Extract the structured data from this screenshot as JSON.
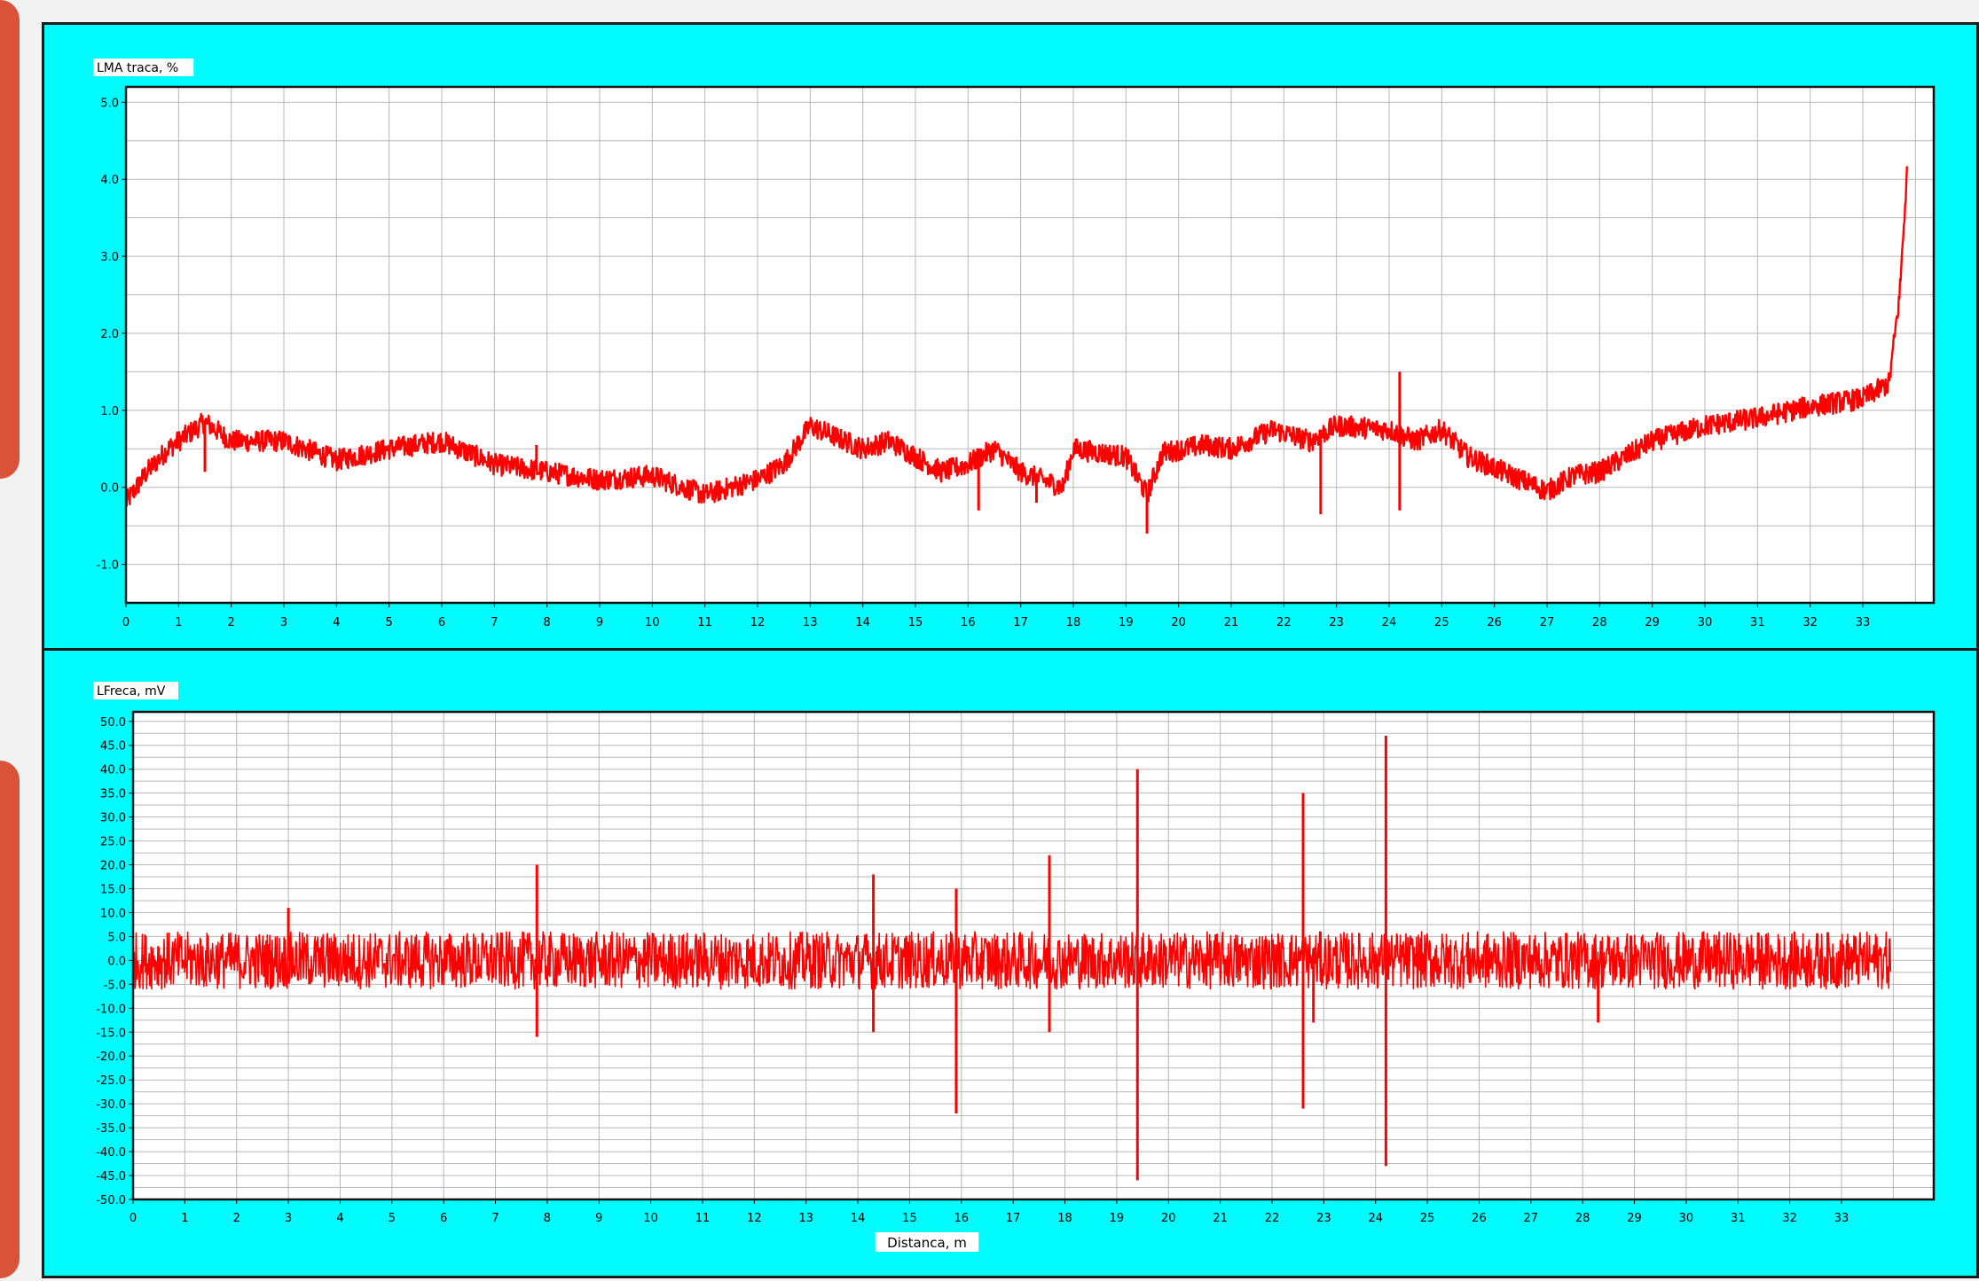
{
  "colors": {
    "background": "#00fcfc",
    "plot_area": "#ffffff",
    "grid": "#b8b8b8",
    "series": "#ff0000",
    "accent": "#d9533b"
  },
  "chart_data": [
    {
      "type": "line",
      "title": "LMA traca, %",
      "xlabel": "",
      "ylabel": "",
      "xlim": [
        0,
        34
      ],
      "ylim": [
        -1.5,
        5.2
      ],
      "x_ticks": [
        0,
        1,
        2,
        3,
        4,
        5,
        6,
        7,
        8,
        9,
        10,
        11,
        12,
        13,
        14,
        15,
        16,
        17,
        18,
        19,
        20,
        21,
        22,
        23,
        24,
        25,
        26,
        27,
        28,
        29,
        30,
        31,
        32,
        33
      ],
      "x_tick_labels": [
        "0",
        "1",
        "2",
        "3",
        "4",
        "5",
        "6",
        "7",
        "8",
        "9",
        "10",
        "11",
        "12",
        "13",
        "14",
        "15",
        "16",
        "17",
        "18",
        "19",
        "20",
        "21",
        "22",
        "23",
        "24",
        "25",
        "26",
        "27",
        "28",
        "29",
        "30",
        "31",
        "32",
        "33"
      ],
      "y_ticks": [
        5.0,
        4.0,
        3.0,
        2.0,
        1.0,
        0.0,
        -1.0
      ],
      "y_tick_labels": [
        "5.0",
        "4.0",
        "3.0",
        "2.0",
        "1.0",
        "0.0",
        "-1.0"
      ],
      "grid": true,
      "series": [
        {
          "baseline": [
            [
              0,
              -0.2
            ],
            [
              0.4,
              0.2
            ],
            [
              0.8,
              0.5
            ],
            [
              1.5,
              0.85
            ],
            [
              2,
              0.6
            ],
            [
              3,
              0.6
            ],
            [
              4,
              0.35
            ],
            [
              5,
              0.5
            ],
            [
              6,
              0.6
            ],
            [
              7,
              0.3
            ],
            [
              8,
              0.2
            ],
            [
              9,
              0.1
            ],
            [
              10,
              0.15
            ],
            [
              11,
              -0.1
            ],
            [
              12,
              0.1
            ],
            [
              12.5,
              0.3
            ],
            [
              13,
              0.8
            ],
            [
              14,
              0.5
            ],
            [
              14.5,
              0.6
            ],
            [
              15,
              0.4
            ],
            [
              15.5,
              0.2
            ],
            [
              16,
              0.3
            ],
            [
              16.5,
              0.5
            ],
            [
              17,
              0.2
            ],
            [
              17.8,
              0.0
            ],
            [
              18,
              0.5
            ],
            [
              19,
              0.4
            ],
            [
              19.4,
              -0.1
            ],
            [
              19.7,
              0.45
            ],
            [
              20.5,
              0.55
            ],
            [
              21,
              0.5
            ],
            [
              21.8,
              0.75
            ],
            [
              22.5,
              0.6
            ],
            [
              23,
              0.8
            ],
            [
              24,
              0.75
            ],
            [
              24.5,
              0.6
            ],
            [
              25,
              0.75
            ],
            [
              25.5,
              0.4
            ],
            [
              26,
              0.25
            ],
            [
              26.5,
              0.1
            ],
            [
              27,
              -0.05
            ],
            [
              27.5,
              0.15
            ],
            [
              28,
              0.2
            ],
            [
              29,
              0.6
            ],
            [
              30,
              0.8
            ],
            [
              31,
              0.9
            ],
            [
              32,
              1.05
            ],
            [
              33,
              1.15
            ],
            [
              33.5,
              1.35
            ],
            [
              33.7,
              2.5
            ],
            [
              33.85,
              4.2
            ]
          ],
          "spikes": [
            [
              1.5,
              0.2
            ],
            [
              3,
              0.6
            ],
            [
              7.8,
              0.55
            ],
            [
              14.3,
              0.45
            ],
            [
              16.2,
              -0.3
            ],
            [
              17.3,
              -0.2
            ],
            [
              19.4,
              -0.6
            ],
            [
              22.7,
              0.75
            ],
            [
              22.7,
              -0.35
            ],
            [
              24.2,
              1.5
            ],
            [
              24.2,
              -0.3
            ]
          ]
        }
      ]
    },
    {
      "type": "line",
      "title": "LFreca, mV",
      "xlabel": "Distanca, m",
      "ylabel": "",
      "xlim": [
        0,
        34
      ],
      "ylim": [
        -50,
        52
      ],
      "x_ticks": [
        0,
        1,
        2,
        3,
        4,
        5,
        6,
        7,
        8,
        9,
        10,
        11,
        12,
        13,
        14,
        15,
        16,
        17,
        18,
        19,
        20,
        21,
        22,
        23,
        24,
        25,
        26,
        27,
        28,
        29,
        30,
        31,
        32,
        33
      ],
      "x_tick_labels": [
        "0",
        "1",
        "2",
        "3",
        "4",
        "5",
        "6",
        "7",
        "8",
        "9",
        "10",
        "11",
        "12",
        "13",
        "14",
        "15",
        "16",
        "17",
        "18",
        "19",
        "20",
        "21",
        "22",
        "23",
        "24",
        "25",
        "26",
        "27",
        "28",
        "29",
        "30",
        "31",
        "32",
        "33"
      ],
      "y_ticks": [
        50,
        45,
        40,
        35,
        30,
        25,
        20,
        15,
        10,
        5,
        0,
        -5,
        -10,
        -15,
        -20,
        -25,
        -30,
        -35,
        -40,
        -45,
        -50
      ],
      "y_tick_labels": [
        "50.0",
        "45.0",
        "40.0",
        "35.0",
        "30.0",
        "25.0",
        "20.0",
        "15.0",
        "10.0",
        "5.0",
        "0.0",
        "-5.0",
        "-10.0",
        "-15.0",
        "-20.0",
        "-25.0",
        "-30.0",
        "-35.0",
        "-40.0",
        "-45.0",
        "-50.0"
      ],
      "grid": true,
      "series": [
        {
          "noise_amplitude": 6,
          "spikes": [
            [
              3,
              11
            ],
            [
              7.8,
              20
            ],
            [
              7.8,
              -16
            ],
            [
              14.3,
              18
            ],
            [
              14.3,
              -15
            ],
            [
              15.9,
              15
            ],
            [
              15.9,
              -32
            ],
            [
              17.7,
              22
            ],
            [
              17.7,
              -15
            ],
            [
              19.4,
              40
            ],
            [
              19.4,
              -46
            ],
            [
              22.6,
              35
            ],
            [
              22.6,
              -31
            ],
            [
              22.8,
              -13
            ],
            [
              24.2,
              47
            ],
            [
              24.2,
              -43
            ],
            [
              28.3,
              -13
            ]
          ]
        }
      ]
    }
  ]
}
